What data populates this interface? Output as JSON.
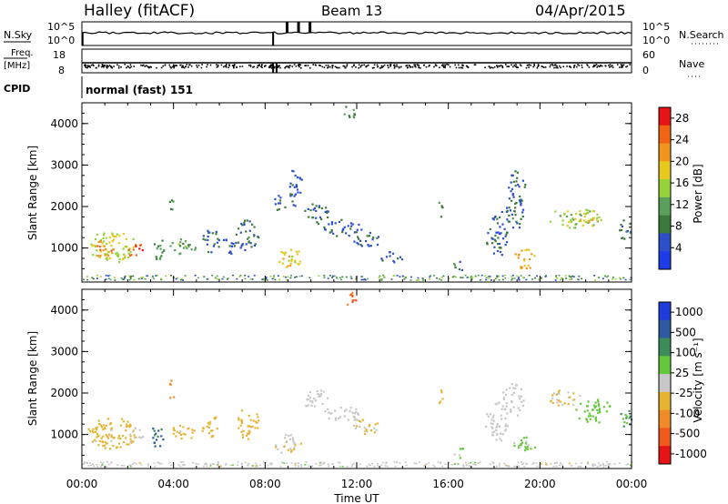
{
  "header": {
    "site": "Halley (fitACF)",
    "beam": "Beam 13",
    "date": "04/Apr/2015"
  },
  "status_panels": {
    "nsky": {
      "label": "N.Sky",
      "ticks": [
        "10^5",
        "10^0"
      ]
    },
    "nsearch": {
      "label": "N.Search",
      "ticks": [
        "10^5",
        "10^0"
      ]
    },
    "freq": {
      "label_line1": "Freq.",
      "label_line2": "[MHz]",
      "ticks": [
        "18",
        "8"
      ]
    },
    "nave": {
      "label": "Nave",
      "ticks": [
        "60",
        "0"
      ]
    },
    "cpid": {
      "label": "CPID",
      "value": "normal (fast) 151"
    }
  },
  "colors": {
    "power": [
      "#1e3ce6",
      "#2d4fc8",
      "#3c7a3c",
      "#5aa05a",
      "#96d23c",
      "#e6c81e",
      "#f0961e",
      "#f06414",
      "#e61414"
    ],
    "velocity": [
      "#1e3cdc",
      "#2d5aa0",
      "#3c8c5a",
      "#64c83c",
      "#c8c8c8",
      "#e6b432",
      "#f08c28",
      "#f05a1e",
      "#e61414"
    ]
  },
  "chart_data": [
    {
      "type": "heatmap",
      "quantity": "Power",
      "xlabel": "",
      "ylabel": "Slant Range [km]",
      "xlim": [
        "00:00",
        "24:00"
      ],
      "ylim": [
        180,
        4500
      ],
      "y_ticks": [
        "1000",
        "2000",
        "3000",
        "4000"
      ],
      "colorbar": {
        "label": "Power [dB]",
        "ticks": [
          "4",
          "8",
          "12",
          "16",
          "20",
          "24",
          "28"
        ],
        "range": [
          0,
          30
        ]
      },
      "blobs": [
        {
          "t": 1.3,
          "r": 1050,
          "dt": 1.1,
          "dr": 380,
          "v": 16
        },
        {
          "t": 0.9,
          "r": 1000,
          "dt": 0.5,
          "dr": 200,
          "v": 22
        },
        {
          "t": 2.3,
          "r": 980,
          "dt": 0.35,
          "dr": 200,
          "v": 26
        },
        {
          "t": 3.3,
          "r": 1000,
          "dt": 0.3,
          "dr": 300,
          "v": 10
        },
        {
          "t": 4.4,
          "r": 1050,
          "dt": 0.6,
          "dr": 200,
          "v": 12
        },
        {
          "t": 3.9,
          "r": 2100,
          "dt": 0.12,
          "dr": 250,
          "v": 8
        },
        {
          "t": 5.6,
          "r": 1200,
          "dt": 0.4,
          "dr": 300,
          "v": 6
        },
        {
          "t": 6.4,
          "r": 1100,
          "dt": 0.3,
          "dr": 250,
          "v": 6
        },
        {
          "t": 7.2,
          "r": 1300,
          "dt": 0.5,
          "dr": 400,
          "v": 7
        },
        {
          "t": 9.0,
          "r": 780,
          "dt": 0.6,
          "dr": 250,
          "v": 18
        },
        {
          "t": 8.6,
          "r": 2100,
          "dt": 0.3,
          "dr": 200,
          "v": 6
        },
        {
          "t": 9.3,
          "r": 2500,
          "dt": 0.3,
          "dr": 500,
          "v": 6
        },
        {
          "t": 10.2,
          "r": 1850,
          "dt": 0.6,
          "dr": 250,
          "v": 7
        },
        {
          "t": 11.3,
          "r": 1500,
          "dt": 0.9,
          "dr": 200,
          "v": 6
        },
        {
          "t": 12.4,
          "r": 1200,
          "dt": 0.6,
          "dr": 200,
          "v": 6
        },
        {
          "t": 11.7,
          "r": 4300,
          "dt": 0.3,
          "dr": 200,
          "v": 10
        },
        {
          "t": 13.5,
          "r": 800,
          "dt": 0.5,
          "dr": 150,
          "v": 6
        },
        {
          "t": 15.6,
          "r": 1950,
          "dt": 0.15,
          "dr": 200,
          "v": 9
        },
        {
          "t": 16.4,
          "r": 600,
          "dt": 0.25,
          "dr": 150,
          "v": 8
        },
        {
          "t": 18.1,
          "r": 1300,
          "dt": 0.5,
          "dr": 500,
          "v": 6
        },
        {
          "t": 18.8,
          "r": 1850,
          "dt": 0.5,
          "dr": 400,
          "v": 7
        },
        {
          "t": 19.3,
          "r": 750,
          "dt": 0.5,
          "dr": 250,
          "v": 20
        },
        {
          "t": 19.0,
          "r": 2500,
          "dt": 0.4,
          "dr": 400,
          "v": 6
        },
        {
          "t": 21.5,
          "r": 1750,
          "dt": 1.2,
          "dr": 250,
          "v": 15
        },
        {
          "t": 22.1,
          "r": 1650,
          "dt": 0.4,
          "dr": 150,
          "v": 20
        },
        {
          "t": 23.7,
          "r": 1450,
          "dt": 0.3,
          "dr": 250,
          "v": 8
        }
      ]
    },
    {
      "type": "heatmap",
      "quantity": "Velocity",
      "xlabel": "Time UT",
      "ylabel": "Slant Range [km]",
      "xlim": [
        "00:00",
        "24:00"
      ],
      "ylim": [
        180,
        4500
      ],
      "x_ticks": [
        "00:00",
        "04:00",
        "08:00",
        "12:00",
        "16:00",
        "20:00",
        "00:00"
      ],
      "y_ticks": [
        "1000",
        "2000",
        "3000",
        "4000"
      ],
      "colorbar": {
        "label": "Velocity [m s⁻¹]",
        "ticks": [
          "1000",
          "500",
          "100",
          "25",
          "-25",
          "-100",
          "-500",
          "-1000"
        ],
        "range": [
          -1200,
          1200
        ]
      },
      "blobs": [
        {
          "t": 1.3,
          "r": 1050,
          "dt": 1.1,
          "dr": 380,
          "v": -300
        },
        {
          "t": 0.9,
          "r": 1000,
          "dt": 0.5,
          "dr": 200,
          "v": -150
        },
        {
          "t": 2.3,
          "r": 980,
          "dt": 0.35,
          "dr": 200,
          "v": -120
        },
        {
          "t": 3.3,
          "r": 1000,
          "dt": 0.3,
          "dr": 300,
          "v": 700
        },
        {
          "t": 4.4,
          "r": 1050,
          "dt": 0.6,
          "dr": 200,
          "v": -200
        },
        {
          "t": 3.9,
          "r": 2100,
          "dt": 0.12,
          "dr": 250,
          "v": -600
        },
        {
          "t": 5.6,
          "r": 1200,
          "dt": 0.4,
          "dr": 300,
          "v": -250
        },
        {
          "t": 7.2,
          "r": 1300,
          "dt": 0.5,
          "dr": 400,
          "v": -200
        },
        {
          "t": 9.0,
          "r": 780,
          "dt": 0.6,
          "dr": 250,
          "v": -120
        },
        {
          "t": 10.2,
          "r": 1850,
          "dt": 0.6,
          "dr": 250,
          "v": 0
        },
        {
          "t": 11.3,
          "r": 1500,
          "dt": 0.9,
          "dr": 200,
          "v": 5
        },
        {
          "t": 12.4,
          "r": 1200,
          "dt": 0.6,
          "dr": 200,
          "v": -150
        },
        {
          "t": 11.7,
          "r": 4300,
          "dt": 0.3,
          "dr": 200,
          "v": -700
        },
        {
          "t": 15.6,
          "r": 1950,
          "dt": 0.15,
          "dr": 200,
          "v": -300
        },
        {
          "t": 16.4,
          "r": 600,
          "dt": 0.25,
          "dr": 150,
          "v": 150
        },
        {
          "t": 18.1,
          "r": 1300,
          "dt": 0.5,
          "dr": 500,
          "v": 0
        },
        {
          "t": 18.8,
          "r": 1850,
          "dt": 0.5,
          "dr": 400,
          "v": 10
        },
        {
          "t": 19.3,
          "r": 750,
          "dt": 0.5,
          "dr": 250,
          "v": 150
        },
        {
          "t": 21.0,
          "r": 1900,
          "dt": 0.8,
          "dr": 200,
          "v": -150
        },
        {
          "t": 22.3,
          "r": 1600,
          "dt": 0.8,
          "dr": 300,
          "v": 300
        },
        {
          "t": 23.7,
          "r": 1450,
          "dt": 0.3,
          "dr": 250,
          "v": 400
        }
      ]
    }
  ]
}
